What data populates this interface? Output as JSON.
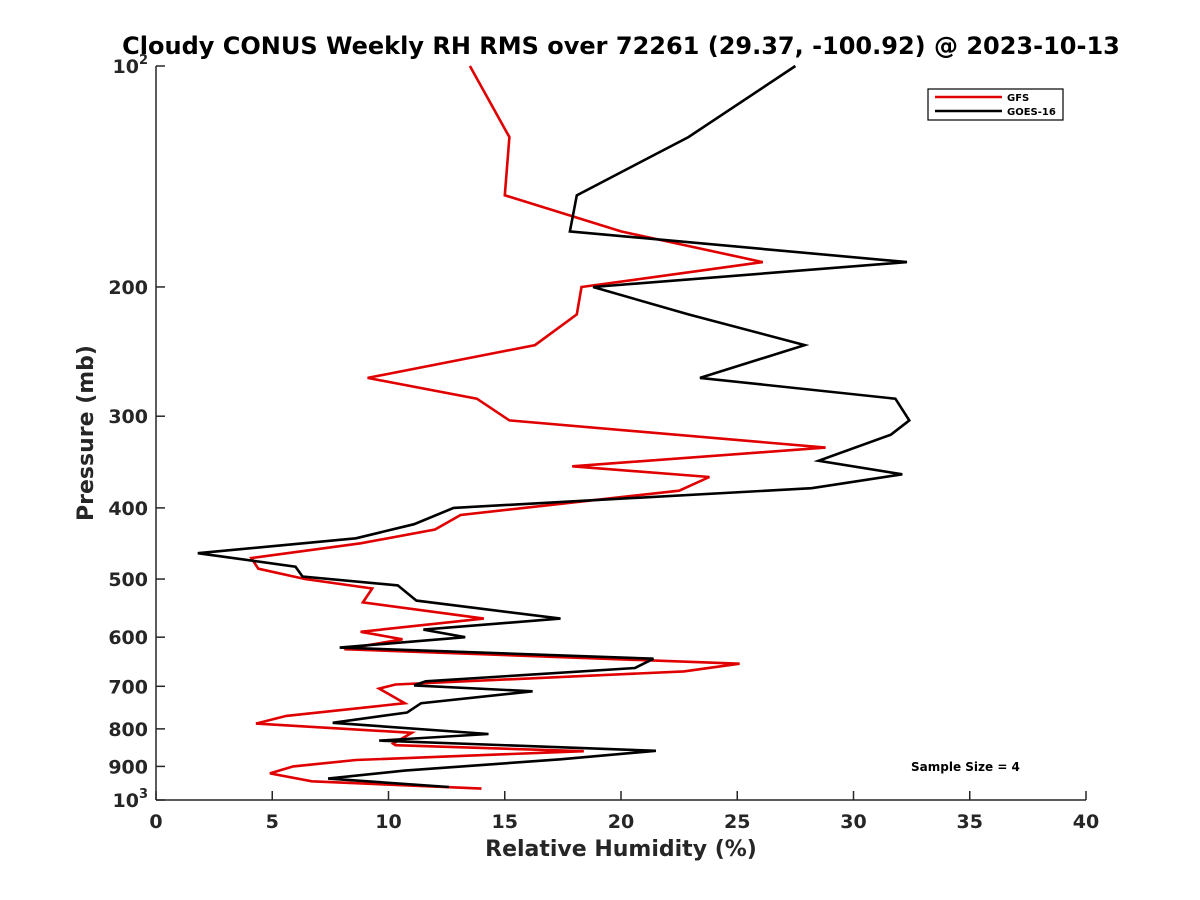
{
  "chart_data": {
    "type": "line",
    "title": "Cloudy CONUS Weekly RH RMS over 72261 (29.37, -100.92) @ 2023-10-13",
    "xlabel": "Relative Humidity (%)",
    "ylabel": "Pressure (mb)",
    "xlim": [
      0,
      40
    ],
    "ylim": [
      100,
      1000
    ],
    "y_scale": "log",
    "y_reversed": true,
    "x_ticks": [
      0,
      5,
      10,
      15,
      20,
      25,
      30,
      35,
      40
    ],
    "y_ticks": [
      {
        "value": 100,
        "label": "10",
        "sup": "2"
      },
      {
        "value": 200,
        "label": "200",
        "sup": ""
      },
      {
        "value": 300,
        "label": "300",
        "sup": ""
      },
      {
        "value": 400,
        "label": "400",
        "sup": ""
      },
      {
        "value": 500,
        "label": "500",
        "sup": ""
      },
      {
        "value": 600,
        "label": "600",
        "sup": ""
      },
      {
        "value": 700,
        "label": "700",
        "sup": ""
      },
      {
        "value": 800,
        "label": "800",
        "sup": ""
      },
      {
        "value": 900,
        "label": "900",
        "sup": ""
      },
      {
        "value": 1000,
        "label": "10",
        "sup": "3"
      }
    ],
    "grid": false,
    "legend_position": "top-right",
    "annotation": "Sample Size = 4",
    "series": [
      {
        "name": "GFS",
        "color": "#e00000",
        "points": [
          [
            13.5,
            100
          ],
          [
            15.2,
            125
          ],
          [
            15.0,
            150
          ],
          [
            20.0,
            168
          ],
          [
            26.1,
            185
          ],
          [
            18.3,
            200
          ],
          [
            18.1,
            218
          ],
          [
            16.3,
            240
          ],
          [
            9.1,
            266
          ],
          [
            13.8,
            284
          ],
          [
            15.2,
            304
          ],
          [
            28.8,
            331
          ],
          [
            17.9,
            351
          ],
          [
            23.8,
            363
          ],
          [
            22.5,
            379
          ],
          [
            13.1,
            409
          ],
          [
            12.0,
            428
          ],
          [
            8.8,
            447
          ],
          [
            4.1,
            468
          ],
          [
            4.4,
            484
          ],
          [
            6.4,
            500
          ],
          [
            9.3,
            515
          ],
          [
            8.9,
            538
          ],
          [
            14.1,
            566
          ],
          [
            8.8,
            590
          ],
          [
            10.6,
            604
          ],
          [
            8.1,
            623
          ],
          [
            25.1,
            652
          ],
          [
            22.7,
            668
          ],
          [
            10.3,
            696
          ],
          [
            9.6,
            705
          ],
          [
            10.7,
            738
          ],
          [
            5.6,
            768
          ],
          [
            4.3,
            787
          ],
          [
            11.0,
            810
          ],
          [
            10.2,
            838
          ],
          [
            10.3,
            842
          ],
          [
            18.4,
            858
          ],
          [
            8.6,
            882
          ],
          [
            5.9,
            900
          ],
          [
            4.9,
            920
          ],
          [
            6.7,
            943
          ],
          [
            14.0,
            965
          ]
        ]
      },
      {
        "name": "GOES-16",
        "color": "#000000",
        "points": [
          [
            27.5,
            100
          ],
          [
            22.9,
            125
          ],
          [
            18.1,
            150
          ],
          [
            17.8,
            168
          ],
          [
            32.3,
            185
          ],
          [
            18.8,
            200
          ],
          [
            22.9,
            218
          ],
          [
            27.9,
            240
          ],
          [
            23.4,
            266
          ],
          [
            31.8,
            284
          ],
          [
            32.4,
            304
          ],
          [
            31.6,
            318
          ],
          [
            28.5,
            345
          ],
          [
            32.1,
            360
          ],
          [
            28.2,
            376
          ],
          [
            12.8,
            400
          ],
          [
            11.1,
            421
          ],
          [
            8.6,
            440
          ],
          [
            1.8,
            461
          ],
          [
            6.0,
            481
          ],
          [
            6.3,
            496
          ],
          [
            10.4,
            510
          ],
          [
            11.2,
            535
          ],
          [
            17.4,
            566
          ],
          [
            11.5,
            586
          ],
          [
            13.3,
            600
          ],
          [
            7.9,
            620
          ],
          [
            21.4,
            642
          ],
          [
            20.6,
            661
          ],
          [
            11.6,
            689
          ],
          [
            11.1,
            698
          ],
          [
            16.2,
            711
          ],
          [
            11.4,
            738
          ],
          [
            10.8,
            760
          ],
          [
            7.6,
            785
          ],
          [
            14.3,
            813
          ],
          [
            9.6,
            830
          ],
          [
            21.5,
            857
          ],
          [
            17.4,
            880
          ],
          [
            10.7,
            912
          ],
          [
            7.4,
            935
          ],
          [
            12.6,
            960
          ]
        ]
      }
    ]
  }
}
